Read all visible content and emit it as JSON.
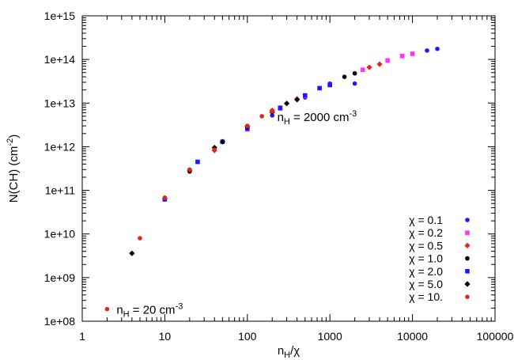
{
  "chart_data": {
    "type": "scatter",
    "title": "",
    "xlabel": {
      "base": "n",
      "sub": "H",
      "tail": "/χ"
    },
    "ylabel": {
      "base": "N(CH)  (cm",
      "sup": "-2",
      "tail": ")"
    },
    "xscale": "log",
    "yscale": "log",
    "xlim": [
      1,
      100000
    ],
    "ylim": [
      100000000.0,
      1000000000000000.0
    ],
    "xticks": [
      1,
      10,
      100,
      1000,
      10000,
      100000
    ],
    "xtick_labels": [
      "1",
      "10",
      "100",
      "1000",
      "10000",
      "100000"
    ],
    "yticks": [
      100000000.0,
      1000000000.0,
      10000000000.0,
      100000000000.0,
      1000000000000.0,
      10000000000000.0,
      100000000000000.0,
      1000000000000000.0
    ],
    "ytick_labels": [
      "1e+08",
      "1e+09",
      "1e+10",
      "1e+11",
      "1e+12",
      "1e+13",
      "1e+14",
      "1e+15"
    ],
    "grid": false,
    "legend_position": "bottom-right",
    "series": [
      {
        "name": "χ = 0.1",
        "marker": "circle",
        "color": "#1a1aff",
        "x": [
          20000,
          15000,
          2000,
          1000,
          500,
          200
        ],
        "y": [
          175000000000000.0,
          160000000000000.0,
          28000000000000.0,
          28000000000000.0,
          13500000000000.0,
          5200000000000.0
        ]
      },
      {
        "name": "χ = 0.2",
        "marker": "square",
        "color": "#ff33ff",
        "x": [
          10000,
          7500,
          5000,
          2500,
          1000,
          500,
          250,
          100
        ],
        "y": [
          135000000000000.0,
          120000000000000.0,
          95000000000000.0,
          58000000000000.0,
          26000000000000.0,
          14500000000000.0,
          7500000000000.0,
          2500000000000.0
        ]
      },
      {
        "name": "χ = 0.5",
        "marker": "diamond",
        "color": "#e6251b",
        "x": [
          4000,
          3000,
          400,
          200,
          40,
          20,
          10
        ],
        "y": [
          78000000000000.0,
          66000000000000.0,
          12500000000000.0,
          6800000000000.0,
          820000000000.0,
          290000000000.0,
          65000000000.0
        ]
      },
      {
        "name": "χ = 1.0",
        "marker": "circle",
        "color": "#000000",
        "x": [
          2000,
          1500,
          100,
          20,
          10
        ],
        "y": [
          48000000000000.0,
          40000000000000.0,
          3000000000000.0,
          270000000000.0,
          65000000000.0
        ]
      },
      {
        "name": "χ = 2.0",
        "marker": "square",
        "color": "#1a1aff",
        "x": [
          1000,
          750,
          500,
          250,
          100,
          50,
          25,
          10
        ],
        "y": [
          26000000000000.0,
          22000000000000.0,
          15000000000000.0,
          7800000000000.0,
          2600000000000.0,
          1300000000000.0,
          450000000000.0,
          62000000000.0
        ]
      },
      {
        "name": "χ = 5.0",
        "marker": "diamond",
        "color": "#000000",
        "x": [
          400,
          300,
          200,
          100,
          50,
          40,
          4
        ],
        "y": [
          12000000000000.0,
          9800000000000.0,
          6200000000000.0,
          2900000000000.0,
          1300000000000.0,
          950000000000.0,
          3600000000.0
        ]
      },
      {
        "name": "χ = 10.",
        "marker": "circle",
        "color": "#e6251b",
        "x": [
          200,
          150,
          100,
          40,
          20,
          10,
          5,
          2
        ],
        "y": [
          6500000000000.0,
          5000000000000.0,
          3000000000000.0,
          850000000000.0,
          300000000000.0,
          68000000000.0,
          8000000000.0,
          190000000.0
        ]
      }
    ],
    "annotations": [
      {
        "base": "n",
        "sub": "H",
        "text": " = 2000 cm",
        "sup": "-3",
        "x": 230,
        "y": 5000000000000.0
      },
      {
        "base": "n",
        "sub": "H",
        "text": " = 20 cm",
        "sup": "-3",
        "x": 2.6,
        "y": 190000000.0
      }
    ]
  }
}
